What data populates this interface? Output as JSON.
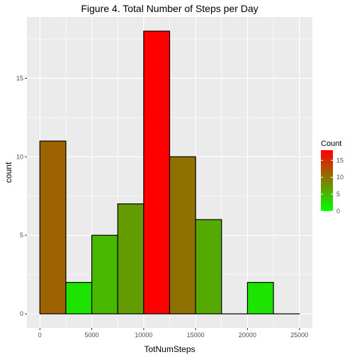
{
  "chart_data": {
    "type": "bar",
    "title": "Figure 4. Total Number of Steps per Day",
    "xlabel": "TotNumSteps",
    "ylabel": "count",
    "bin_width": 2500,
    "bins": [
      {
        "x_start": 0,
        "x_end": 2500,
        "count": 11
      },
      {
        "x_start": 2500,
        "x_end": 5000,
        "count": 2
      },
      {
        "x_start": 5000,
        "x_end": 7500,
        "count": 5
      },
      {
        "x_start": 7500,
        "x_end": 10000,
        "count": 7
      },
      {
        "x_start": 10000,
        "x_end": 12500,
        "count": 18
      },
      {
        "x_start": 12500,
        "x_end": 15000,
        "count": 10
      },
      {
        "x_start": 15000,
        "x_end": 17500,
        "count": 6
      },
      {
        "x_start": 17500,
        "x_end": 20000,
        "count": 0
      },
      {
        "x_start": 20000,
        "x_end": 22500,
        "count": 2
      },
      {
        "x_start": 22500,
        "x_end": 25000,
        "count": 0
      }
    ],
    "xlim": [
      -1250,
      26250
    ],
    "ylim": [
      -0.9,
      18.9
    ],
    "x_ticks": [
      0,
      5000,
      10000,
      15000,
      20000,
      25000
    ],
    "y_ticks": [
      0,
      5,
      10,
      15
    ],
    "grid": true,
    "legend": {
      "title": "Count",
      "placement": "right",
      "ticks": [
        0,
        5,
        10,
        15
      ],
      "range": [
        0,
        18
      ],
      "low_color": "#00ff00",
      "high_color": "#ff0000"
    },
    "colors": {
      "panel_background": "#ebebeb",
      "grid": "#ffffff",
      "bar_outline": "#000000"
    }
  }
}
